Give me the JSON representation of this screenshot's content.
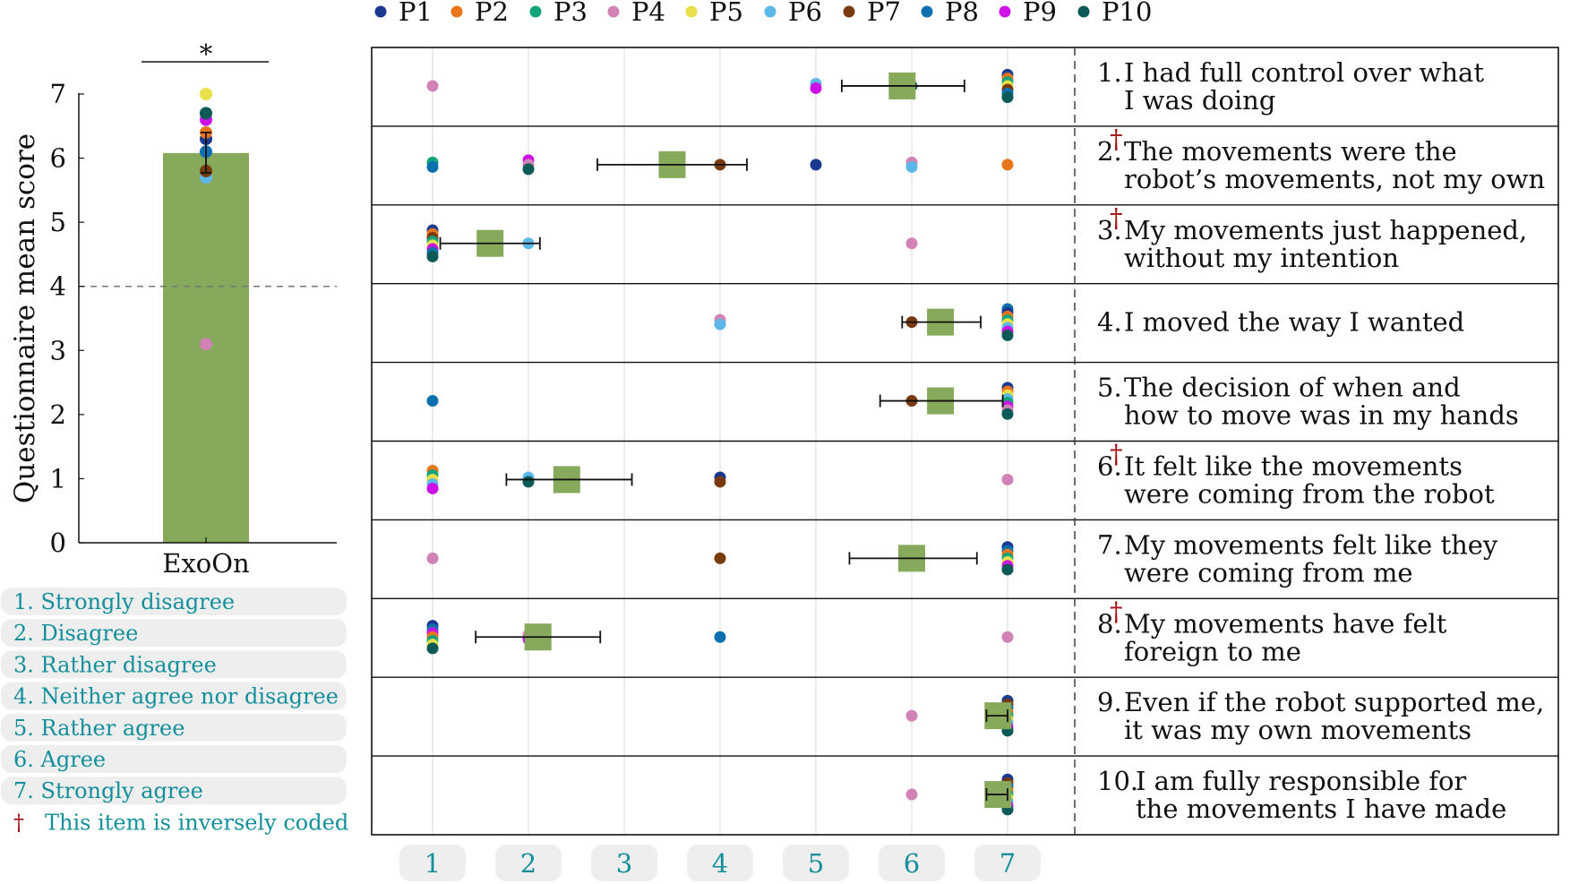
{
  "colors": {
    "bar": "#86a95b",
    "mean_marker": "#86a95b",
    "accent_text": "#138f9b",
    "dagger": "#a01010",
    "scale_box": "#eeeeee"
  },
  "legend": {
    "position": "top",
    "entries": [
      {
        "label": "P1",
        "color": "#1a3a8f"
      },
      {
        "label": "P2",
        "color": "#e8741c"
      },
      {
        "label": "P3",
        "color": "#12a37a"
      },
      {
        "label": "P4",
        "color": "#d283b5"
      },
      {
        "label": "P5",
        "color": "#e8e04a"
      },
      {
        "label": "P6",
        "color": "#5db8e8"
      },
      {
        "label": "P7",
        "color": "#7a3a10"
      },
      {
        "label": "P8",
        "color": "#0c6fae"
      },
      {
        "label": "P9",
        "color": "#cc12e6"
      },
      {
        "label": "P10",
        "color": "#0c5a57"
      }
    ]
  },
  "chart_data": [
    {
      "type": "bar",
      "ylabel": "Questionnaire mean score",
      "ylim": [
        0,
        7
      ],
      "yticks": [
        "0",
        "1",
        "2",
        "3",
        "4",
        "5",
        "6",
        "7"
      ],
      "categories": [
        "ExoOn"
      ],
      "values": [
        6.08
      ],
      "error": [
        5.77,
        6.4
      ],
      "reference_line": 4,
      "significance": "*",
      "participant_points": [
        {
          "p": "P1",
          "value": 6.3
        },
        {
          "p": "P2",
          "value": 6.4
        },
        {
          "p": "P3",
          "value": 6.7
        },
        {
          "p": "P4",
          "value": 3.1
        },
        {
          "p": "P5",
          "value": 7.0
        },
        {
          "p": "P6",
          "value": 5.7
        },
        {
          "p": "P7",
          "value": 5.8
        },
        {
          "p": "P8",
          "value": 6.1
        },
        {
          "p": "P9",
          "value": 6.6
        },
        {
          "p": "P10",
          "value": 6.7
        }
      ]
    },
    {
      "type": "scatter",
      "xlim": [
        0.4,
        7.7
      ],
      "xticks": [
        "1",
        "2",
        "3",
        "4",
        "5",
        "6",
        "7"
      ],
      "grid": "vertical",
      "items": [
        {
          "num": "1.",
          "inverse": false,
          "lines": [
            "I had full control over what",
            "I was doing"
          ],
          "mean": 5.9,
          "err": [
            5.27,
            6.55
          ],
          "points": [
            {
              "x": 1,
              "c": [
                "P4"
              ]
            },
            {
              "x": 5,
              "c": [
                "P6",
                "P9"
              ]
            },
            {
              "x": 6,
              "c": [
                "P10"
              ]
            },
            {
              "x": 7,
              "c": [
                "P1",
                "P2",
                "P3",
                "P5",
                "P7",
                "P8",
                "P10"
              ]
            }
          ]
        },
        {
          "num": "2.",
          "inverse": true,
          "lines": [
            "The movements were the",
            "robot’s movements, not my own"
          ],
          "mean": 3.5,
          "err": [
            2.72,
            4.28
          ],
          "points": [
            {
              "x": 1,
              "c": [
                "P3",
                "P8"
              ]
            },
            {
              "x": 2,
              "c": [
                "P9",
                "P4",
                "P10"
              ]
            },
            {
              "x": 4,
              "c": [
                "P7"
              ]
            },
            {
              "x": 5,
              "c": [
                "P1"
              ]
            },
            {
              "x": 6,
              "c": [
                "P4",
                "P6"
              ]
            },
            {
              "x": 7,
              "c": [
                "P2"
              ]
            }
          ]
        },
        {
          "num": "3.",
          "inverse": true,
          "lines": [
            "My movements just happened,",
            "without my intention"
          ],
          "mean": 1.6,
          "err": [
            1.08,
            2.12
          ],
          "points": [
            {
              "x": 1,
              "c": [
                "P1",
                "P2",
                "P7",
                "P3",
                "P5",
                "P9",
                "P8",
                "P10"
              ]
            },
            {
              "x": 2,
              "c": [
                "P6"
              ]
            },
            {
              "x": 6,
              "c": [
                "P4"
              ]
            }
          ]
        },
        {
          "num": "4.",
          "inverse": false,
          "lines": [
            "I moved the way I wanted"
          ],
          "mean": 6.3,
          "err": [
            5.9,
            6.72
          ],
          "points": [
            {
              "x": 4,
              "c": [
                "P4",
                "P6"
              ]
            },
            {
              "x": 6,
              "c": [
                "P7"
              ]
            },
            {
              "x": 7,
              "c": [
                "P8",
                "P1",
                "P2",
                "P3",
                "P5",
                "P6",
                "P9",
                "P10"
              ]
            }
          ]
        },
        {
          "num": "5.",
          "inverse": false,
          "lines": [
            "The decision of when and",
            "how to move was in my hands"
          ],
          "mean": 6.3,
          "err": [
            5.67,
            6.95
          ],
          "points": [
            {
              "x": 1,
              "c": [
                "P8"
              ]
            },
            {
              "x": 6,
              "c": [
                "P7"
              ]
            },
            {
              "x": 7,
              "c": [
                "P1",
                "P2",
                "P5",
                "P6",
                "P3",
                "P9",
                "P4",
                "P10"
              ]
            }
          ]
        },
        {
          "num": "6.",
          "inverse": true,
          "lines": [
            "It felt like the movements",
            "were coming from the robot"
          ],
          "mean": 2.4,
          "err": [
            1.77,
            3.08
          ],
          "points": [
            {
              "x": 1,
              "c": [
                "P2",
                "P3",
                "P5",
                "P6",
                "P9"
              ]
            },
            {
              "x": 2,
              "c": [
                "P6",
                "P10"
              ]
            },
            {
              "x": 4,
              "c": [
                "P1",
                "P7"
              ]
            },
            {
              "x": 7,
              "c": [
                "P4"
              ]
            }
          ]
        },
        {
          "num": "7.",
          "inverse": false,
          "lines": [
            "My movements felt like they",
            "were coming from me"
          ],
          "mean": 6.0,
          "err": [
            5.35,
            6.68
          ],
          "points": [
            {
              "x": 1,
              "c": [
                "P4"
              ]
            },
            {
              "x": 4,
              "c": [
                "P7"
              ]
            },
            {
              "x": 6,
              "c": [
                "P6"
              ]
            },
            {
              "x": 7,
              "c": [
                "P1",
                "P8",
                "P2",
                "P3",
                "P5",
                "P9",
                "P10"
              ]
            }
          ]
        },
        {
          "num": "8.",
          "inverse": true,
          "lines": [
            "My movements have felt",
            "foreign to me"
          ],
          "mean": 2.1,
          "err": [
            1.45,
            2.75
          ],
          "points": [
            {
              "x": 1,
              "c": [
                "P1",
                "P8",
                "P9",
                "P2",
                "P3",
                "P5",
                "P10"
              ]
            },
            {
              "x": 2,
              "c": [
                "P4",
                "P9"
              ]
            },
            {
              "x": 4,
              "c": [
                "P8"
              ]
            },
            {
              "x": 7,
              "c": [
                "P4"
              ]
            }
          ]
        },
        {
          "num": "9.",
          "inverse": false,
          "lines": [
            "Even if the robot supported me,",
            "it was my own movements"
          ],
          "mean": 6.9,
          "err": [
            6.78,
            7.0
          ],
          "points": [
            {
              "x": 6,
              "c": [
                "P4"
              ]
            },
            {
              "x": 7,
              "c": [
                "P1",
                "P7",
                "P8",
                "P2",
                "P3",
                "P5",
                "P6",
                "P9",
                "P10"
              ]
            }
          ]
        },
        {
          "num": "10.",
          "inverse": false,
          "lines": [
            "I am fully responsible for",
            "the movements I have made"
          ],
          "mean": 6.9,
          "err": [
            6.78,
            7.0
          ],
          "points": [
            {
              "x": 6,
              "c": [
                "P4"
              ]
            },
            {
              "x": 7,
              "c": [
                "P1",
                "P7",
                "P8",
                "P2",
                "P3",
                "P5",
                "P6",
                "P9",
                "P10"
              ]
            }
          ]
        }
      ]
    }
  ],
  "scale_labels": [
    "1.  Strongly disagree",
    "2.  Disagree",
    "3.  Rather disagree",
    "4.  Neither agree nor disagree",
    "5.  Rather agree",
    "6.  Agree",
    "7.  Strongly agree"
  ],
  "inverse_note": {
    "symbol": "†",
    "text": "This item is inversely coded"
  }
}
